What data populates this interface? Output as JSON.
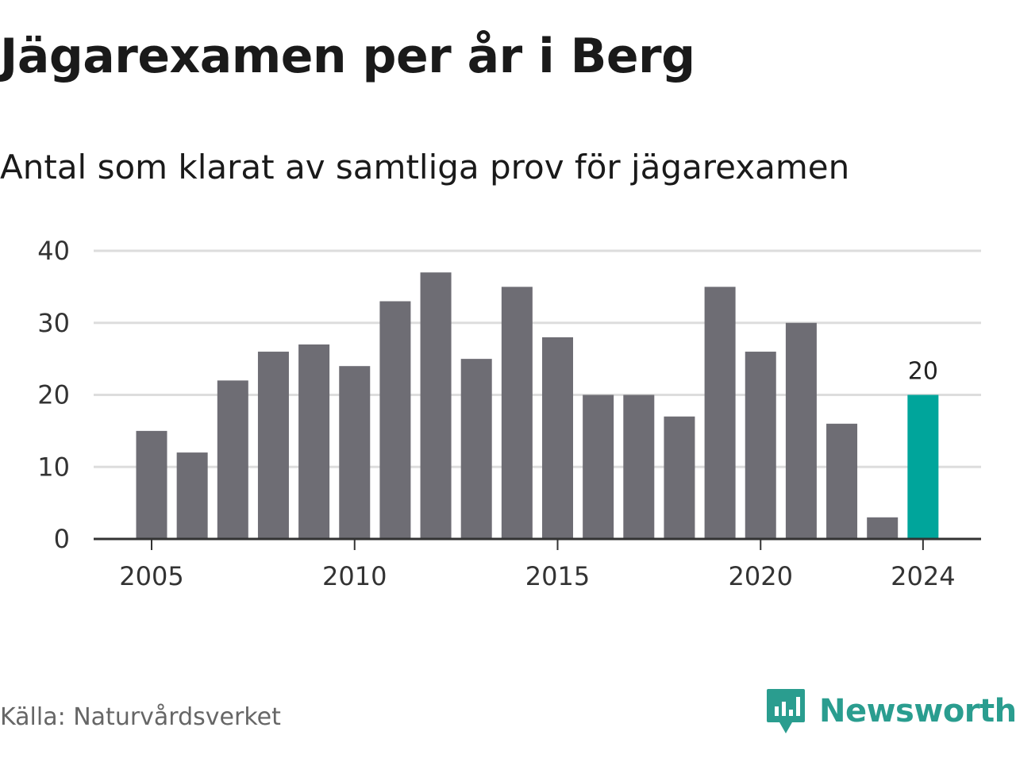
{
  "title": "Jägarexamen per år i Berg",
  "subtitle": "Antal som klarat av samtliga prov för jägarexamen",
  "source": "Källa: Naturvårdsverket",
  "brand": {
    "name": "Newsworthy",
    "icon": "newsworthy-logo-icon",
    "color": "#2a9d8f"
  },
  "chart_data": {
    "type": "bar",
    "x": [
      2005,
      2006,
      2007,
      2008,
      2009,
      2010,
      2011,
      2012,
      2013,
      2014,
      2015,
      2016,
      2017,
      2018,
      2019,
      2020,
      2021,
      2022,
      2023,
      2024
    ],
    "values": [
      15,
      12,
      22,
      26,
      27,
      24,
      33,
      37,
      25,
      35,
      28,
      20,
      20,
      17,
      35,
      26,
      30,
      16,
      3,
      20
    ],
    "xticks": [
      2005,
      2010,
      2015,
      2020,
      2024
    ],
    "yticks": [
      0,
      10,
      20,
      30,
      40
    ],
    "ylim": [
      0,
      40
    ],
    "highlight": {
      "x": 2024,
      "label": "20"
    },
    "colors": {
      "bar": "#6e6d74",
      "highlight": "#00a59b",
      "grid": "#dddddd",
      "axis": "#333333"
    },
    "grid": true,
    "legend": "none"
  }
}
